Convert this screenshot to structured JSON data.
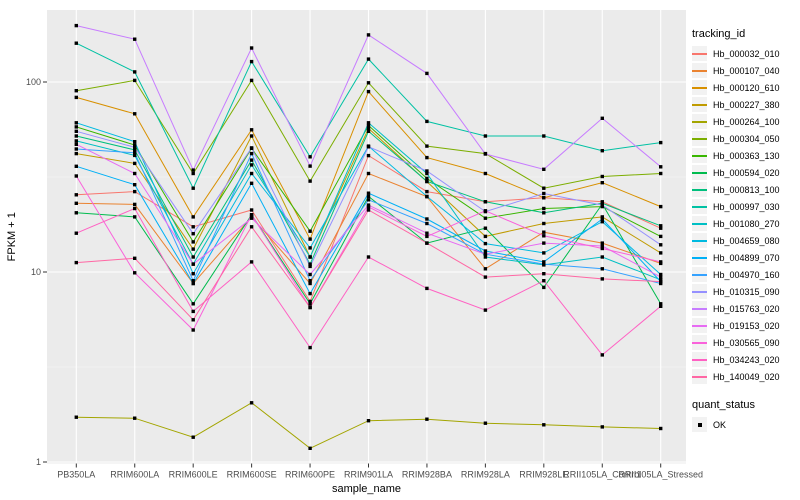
{
  "chart_data": {
    "type": "line",
    "title": "",
    "xlabel": "sample_name",
    "ylabel": "FPKM + 1",
    "y_scale": "log10",
    "ylim": [
      1,
      240
    ],
    "grid": true,
    "panel_bg": "#EBEBEB",
    "grid_color": "#FFFFFF",
    "point_color": "#000000",
    "axis_text_color": "#4D4D4D",
    "y_ticks": [
      {
        "label": "100",
        "value": 100
      },
      {
        "label": "10",
        "value": 10
      },
      {
        "label": "1",
        "value": 1
      }
    ],
    "y_minor_ticks": [
      3.1623,
      31.623
    ],
    "categories": [
      "PB350LA",
      "RRIM600LA",
      "RRIM600LE",
      "RRIM600SE",
      "RRIM600PE",
      "RRIM901LA",
      "RRIM928BA",
      "RRIM928LA",
      "RRIM928LE",
      "RRII105LA_Control",
      "RRII105LA_Stressed"
    ],
    "legend_title": "tracking_id",
    "legend2_title": "quant_status",
    "legend2_items": [
      {
        "label": "OK",
        "marker": "black-square"
      }
    ],
    "series": [
      {
        "name": "Hb_000032_010",
        "color": "#F8766D",
        "values": [
          25.5,
          26.5,
          17.3,
          21.2,
          7.0,
          41,
          26.5,
          23.4,
          24.6,
          23.4,
          17.0
        ]
      },
      {
        "name": "Hb_000107_040",
        "color": "#EA8331",
        "values": [
          23.0,
          22.7,
          8.7,
          19.5,
          8.7,
          33,
          24.9,
          10.4,
          16.2,
          14.2,
          11.1
        ]
      },
      {
        "name": "Hb_000120_610",
        "color": "#D89000",
        "values": [
          83,
          68,
          19.5,
          56,
          14.9,
          89,
          40,
          33,
          24.6,
          29.5,
          22.1
        ]
      },
      {
        "name": "Hb_000227_380",
        "color": "#C09B00",
        "values": [
          42,
          37.3,
          13.2,
          52,
          12.0,
          57,
          29.9,
          15.4,
          18.0,
          19.5,
          12.6
        ]
      },
      {
        "name": "Hb_000264_100",
        "color": "#A3A500",
        "values": [
          1.72,
          1.7,
          1.35,
          2.05,
          1.18,
          1.65,
          1.68,
          1.6,
          1.57,
          1.53,
          1.5
        ]
      },
      {
        "name": "Hb_000304_050",
        "color": "#7CAE00",
        "values": [
          90,
          102,
          33,
          102,
          30.1,
          99,
          46,
          42,
          27.6,
          31.8,
          33
        ]
      },
      {
        "name": "Hb_000363_130",
        "color": "#39B600",
        "values": [
          58,
          46.6,
          14.4,
          44.8,
          16.4,
          59,
          31.1,
          19.2,
          21.6,
          22.1,
          15.4
        ]
      },
      {
        "name": "Hb_000594_020",
        "color": "#00BB4E",
        "values": [
          20.5,
          19.5,
          6.8,
          20,
          6.8,
          25,
          14.2,
          17.0,
          8.3,
          22.8,
          6.8
        ]
      },
      {
        "name": "Hb_000813_100",
        "color": "#00BF7D",
        "values": [
          52,
          43.9,
          12.0,
          38.8,
          11.0,
          55,
          30,
          23.4,
          20.5,
          23.0,
          17.5
        ]
      },
      {
        "name": "Hb_000997_030",
        "color": "#00C1A3",
        "values": [
          160,
          113,
          27.6,
          128,
          40.4,
          132,
          62,
          52,
          52,
          43.5,
          48
        ]
      },
      {
        "name": "Hb_001080_270",
        "color": "#00BFC4",
        "values": [
          49,
          41.1,
          11.0,
          36.6,
          12.0,
          61,
          33,
          12.0,
          10.9,
          12.0,
          9.1
        ]
      },
      {
        "name": "Hb_004659_080",
        "color": "#00BAE0",
        "values": [
          61,
          48.5,
          9.8,
          33,
          13.4,
          46,
          25,
          14.1,
          12.6,
          18.4,
          9.7
        ]
      },
      {
        "name": "Hb_004899_070",
        "color": "#00B0F6",
        "values": [
          36,
          28.8,
          8.7,
          29.3,
          7.7,
          26,
          19,
          12.9,
          11.3,
          19.0,
          8.9
        ]
      },
      {
        "name": "Hb_004970_160",
        "color": "#35A2FF",
        "values": [
          44.4,
          42.4,
          9.0,
          42,
          9.0,
          24,
          18,
          12.4,
          11.0,
          10.4,
          8.7
        ]
      },
      {
        "name": "Hb_010315_090",
        "color": "#9590FF",
        "values": [
          55,
          45.3,
          15.9,
          45,
          10.7,
          45.6,
          34,
          20.8,
          25.9,
          22.5,
          13.9
        ]
      },
      {
        "name": "Hb_015763_020",
        "color": "#C77CFF",
        "values": [
          198,
          168,
          34.4,
          151,
          36.1,
          177,
          111,
          41.8,
          34.7,
          64.4,
          35.8
        ]
      },
      {
        "name": "Hb_019153_020",
        "color": "#E76BF3",
        "values": [
          47,
          33,
          11.0,
          19.2,
          9.7,
          22.5,
          16,
          12.4,
          14.2,
          13.7,
          9.4
        ]
      },
      {
        "name": "Hb_030565_090",
        "color": "#FA62DB",
        "values": [
          32,
          9.9,
          4.95,
          20,
          6.5,
          22,
          15.4,
          21,
          15.5,
          13.3,
          11.3
        ]
      },
      {
        "name": "Hb_034243_020",
        "color": "#FF61C3",
        "values": [
          16,
          21.6,
          6.2,
          11.3,
          4.0,
          12,
          8.2,
          6.3,
          9.0,
          3.66,
          6.6
        ]
      },
      {
        "name": "Hb_140049_020",
        "color": "#FF67A4",
        "values": [
          11.2,
          11.8,
          5.6,
          17.3,
          6.5,
          21.2,
          14.2,
          9.4,
          9.8,
          9.2,
          8.9
        ]
      }
    ]
  }
}
